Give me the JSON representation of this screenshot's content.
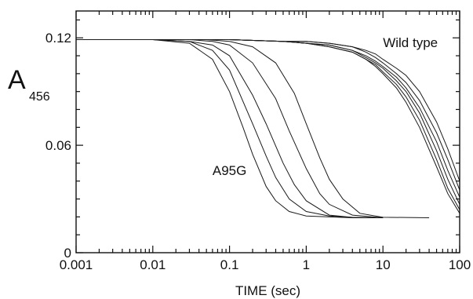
{
  "chart_data": {
    "type": "line",
    "xlabel": "TIME  (sec)",
    "ylabel_main": "A",
    "ylabel_sub": "456",
    "x_scale": "log",
    "xlim": [
      0.001,
      100
    ],
    "ylim": [
      0,
      0.135
    ],
    "x_ticks": [
      0.001,
      0.01,
      0.1,
      1,
      10,
      100
    ],
    "x_tick_labels": [
      "0.001",
      "0.01",
      "0.1",
      "1",
      "10",
      "100"
    ],
    "y_ticks": [
      0,
      0.06,
      0.12
    ],
    "y_tick_labels": [
      "0",
      "0.06",
      "0.12"
    ],
    "grid": false,
    "legend": "none",
    "line_color": "#1a1a1a",
    "annotations": [
      {
        "text": "Wild type",
        "x": 10,
        "y": 0.1175
      },
      {
        "text": "A95G",
        "x": 0.06,
        "y": 0.046
      }
    ],
    "series": [
      {
        "group": "A95G",
        "x": [
          0.001,
          0.01,
          0.03,
          0.06,
          0.1,
          0.15,
          0.2,
          0.3,
          0.4,
          0.6,
          1,
          2,
          4,
          10
        ],
        "y": [
          0.119,
          0.119,
          0.117,
          0.108,
          0.09,
          0.07,
          0.055,
          0.037,
          0.029,
          0.023,
          0.0205,
          0.02,
          0.0195,
          0.0195
        ]
      },
      {
        "group": "A95G",
        "x": [
          0.001,
          0.01,
          0.03,
          0.06,
          0.1,
          0.2,
          0.3,
          0.4,
          0.6,
          1,
          2,
          4,
          10
        ],
        "y": [
          0.119,
          0.119,
          0.118,
          0.113,
          0.102,
          0.072,
          0.054,
          0.042,
          0.03,
          0.023,
          0.0205,
          0.0197,
          0.0195
        ]
      },
      {
        "group": "A95G",
        "x": [
          0.001,
          0.01,
          0.03,
          0.06,
          0.1,
          0.2,
          0.3,
          0.5,
          0.7,
          1,
          2,
          4,
          10
        ],
        "y": [
          0.119,
          0.119,
          0.118,
          0.116,
          0.11,
          0.088,
          0.072,
          0.05,
          0.038,
          0.029,
          0.021,
          0.0197,
          0.0195
        ]
      },
      {
        "group": "A95G",
        "x": [
          0.001,
          0.01,
          0.03,
          0.06,
          0.1,
          0.2,
          0.4,
          0.6,
          1,
          1.5,
          2,
          4,
          10
        ],
        "y": [
          0.119,
          0.119,
          0.119,
          0.118,
          0.116,
          0.106,
          0.086,
          0.068,
          0.047,
          0.033,
          0.027,
          0.021,
          0.0195
        ]
      },
      {
        "group": "A95G",
        "x": [
          0.001,
          0.01,
          0.05,
          0.1,
          0.2,
          0.4,
          0.7,
          1,
          1.5,
          2,
          3,
          5,
          10,
          40
        ],
        "y": [
          0.119,
          0.119,
          0.119,
          0.118,
          0.115,
          0.106,
          0.089,
          0.072,
          0.053,
          0.041,
          0.03,
          0.022,
          0.0198,
          0.0195
        ]
      },
      {
        "group": "Wild type",
        "x": [
          0.001,
          0.1,
          0.5,
          1,
          2,
          4,
          6,
          8,
          10,
          15,
          20,
          30,
          50,
          70,
          100
        ],
        "y": [
          0.119,
          0.119,
          0.118,
          0.117,
          0.115,
          0.112,
          0.108,
          0.104,
          0.1,
          0.092,
          0.084,
          0.07,
          0.048,
          0.033,
          0.022
        ]
      },
      {
        "group": "Wild type",
        "x": [
          0.001,
          0.1,
          0.5,
          1,
          2,
          4,
          6,
          8,
          10,
          15,
          20,
          30,
          50,
          70,
          100
        ],
        "y": [
          0.119,
          0.119,
          0.118,
          0.117,
          0.115,
          0.112,
          0.108,
          0.105,
          0.101,
          0.094,
          0.087,
          0.074,
          0.052,
          0.036,
          0.024
        ]
      },
      {
        "group": "Wild type",
        "x": [
          0.001,
          0.1,
          0.5,
          1,
          2,
          4,
          6,
          8,
          10,
          15,
          20,
          30,
          50,
          70,
          100
        ],
        "y": [
          0.119,
          0.119,
          0.118,
          0.117,
          0.116,
          0.113,
          0.109,
          0.106,
          0.103,
          0.096,
          0.09,
          0.078,
          0.057,
          0.041,
          0.027
        ]
      },
      {
        "group": "Wild type",
        "x": [
          0.001,
          0.1,
          0.5,
          1,
          2,
          4,
          6,
          8,
          10,
          15,
          20,
          30,
          50,
          70,
          100
        ],
        "y": [
          0.119,
          0.119,
          0.118,
          0.117,
          0.116,
          0.113,
          0.11,
          0.107,
          0.104,
          0.098,
          0.092,
          0.081,
          0.062,
          0.046,
          0.031
        ]
      },
      {
        "group": "Wild type",
        "x": [
          0.001,
          0.1,
          0.5,
          1,
          2,
          4,
          6,
          8,
          10,
          15,
          20,
          30,
          50,
          70,
          100
        ],
        "y": [
          0.119,
          0.119,
          0.118,
          0.118,
          0.117,
          0.115,
          0.112,
          0.109,
          0.106,
          0.1,
          0.095,
          0.085,
          0.067,
          0.052,
          0.035
        ]
      },
      {
        "group": "Wild type",
        "x": [
          0.001,
          0.1,
          0.5,
          1,
          2,
          4,
          6,
          8,
          10,
          15,
          20,
          30,
          50,
          70,
          100
        ],
        "y": [
          0.119,
          0.119,
          0.118,
          0.118,
          0.117,
          0.115,
          0.113,
          0.111,
          0.108,
          0.103,
          0.099,
          0.09,
          0.073,
          0.058,
          0.04
        ]
      }
    ]
  }
}
